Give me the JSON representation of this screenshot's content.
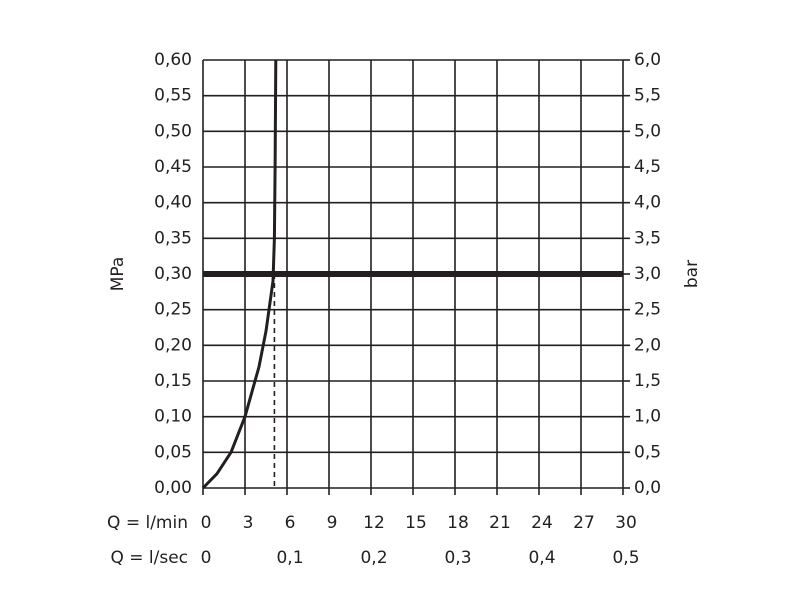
{
  "chart_data": {
    "type": "line",
    "x_label": "Q = l/min",
    "x2_label": "Q = l/sec",
    "y_label": "MPa",
    "y2_label": "bar",
    "xlim": [
      0,
      30
    ],
    "xticks": [
      0,
      3,
      6,
      9,
      12,
      15,
      18,
      21,
      24,
      27,
      30
    ],
    "x2lim": [
      0,
      0.5
    ],
    "x2ticks": [
      0,
      {
        "value": 0.1,
        "label": "0,1"
      },
      {
        "value": 0.2,
        "label": "0,2"
      },
      {
        "value": 0.3,
        "label": "0,3"
      },
      {
        "value": 0.4,
        "label": "0,4"
      },
      {
        "value": 0.5,
        "label": "0,5"
      }
    ],
    "ylim": [
      0,
      0.6
    ],
    "yticks": [
      {
        "value": 0,
        "label": "0,00"
      },
      {
        "value": 0.05,
        "label": "0,05"
      },
      {
        "value": 0.1,
        "label": "0,10"
      },
      {
        "value": 0.15,
        "label": "0,15"
      },
      {
        "value": 0.2,
        "label": "0,20"
      },
      {
        "value": 0.25,
        "label": "0,25"
      },
      {
        "value": 0.3,
        "label": "0,30"
      },
      {
        "value": 0.35,
        "label": "0,35"
      },
      {
        "value": 0.4,
        "label": "0,40"
      },
      {
        "value": 0.45,
        "label": "0,45"
      },
      {
        "value": 0.5,
        "label": "0,50"
      },
      {
        "value": 0.55,
        "label": "0,55"
      },
      {
        "value": 0.6,
        "label": "0,60"
      }
    ],
    "y2lim": [
      0,
      6
    ],
    "y2ticks": [
      {
        "value": 0,
        "label": "0,0"
      },
      {
        "value": 0.5,
        "label": "0,5"
      },
      {
        "value": 1,
        "label": "1,0"
      },
      {
        "value": 1.5,
        "label": "1,5"
      },
      {
        "value": 2,
        "label": "2,0"
      },
      {
        "value": 2.5,
        "label": "2,5"
      },
      {
        "value": 3,
        "label": "3,0"
      },
      {
        "value": 3.5,
        "label": "3,5"
      },
      {
        "value": 4,
        "label": "4,0"
      },
      {
        "value": 4.5,
        "label": "4,5"
      },
      {
        "value": 5,
        "label": "5,0"
      },
      {
        "value": 5.5,
        "label": "5,5"
      },
      {
        "value": 6,
        "label": "6,0"
      }
    ],
    "grid": true,
    "series": [
      {
        "color": "#231f20",
        "x": [
          0,
          1,
          2,
          3,
          4,
          4.5,
          5,
          5.1,
          5.15,
          5.2
        ],
        "values": [
          0,
          0.02,
          0.05,
          0.1,
          0.17,
          0.22,
          0.29,
          0.35,
          0.45,
          0.6
        ]
      }
    ],
    "operating_point": {
      "x": 5.1,
      "y": 0.3
    }
  }
}
